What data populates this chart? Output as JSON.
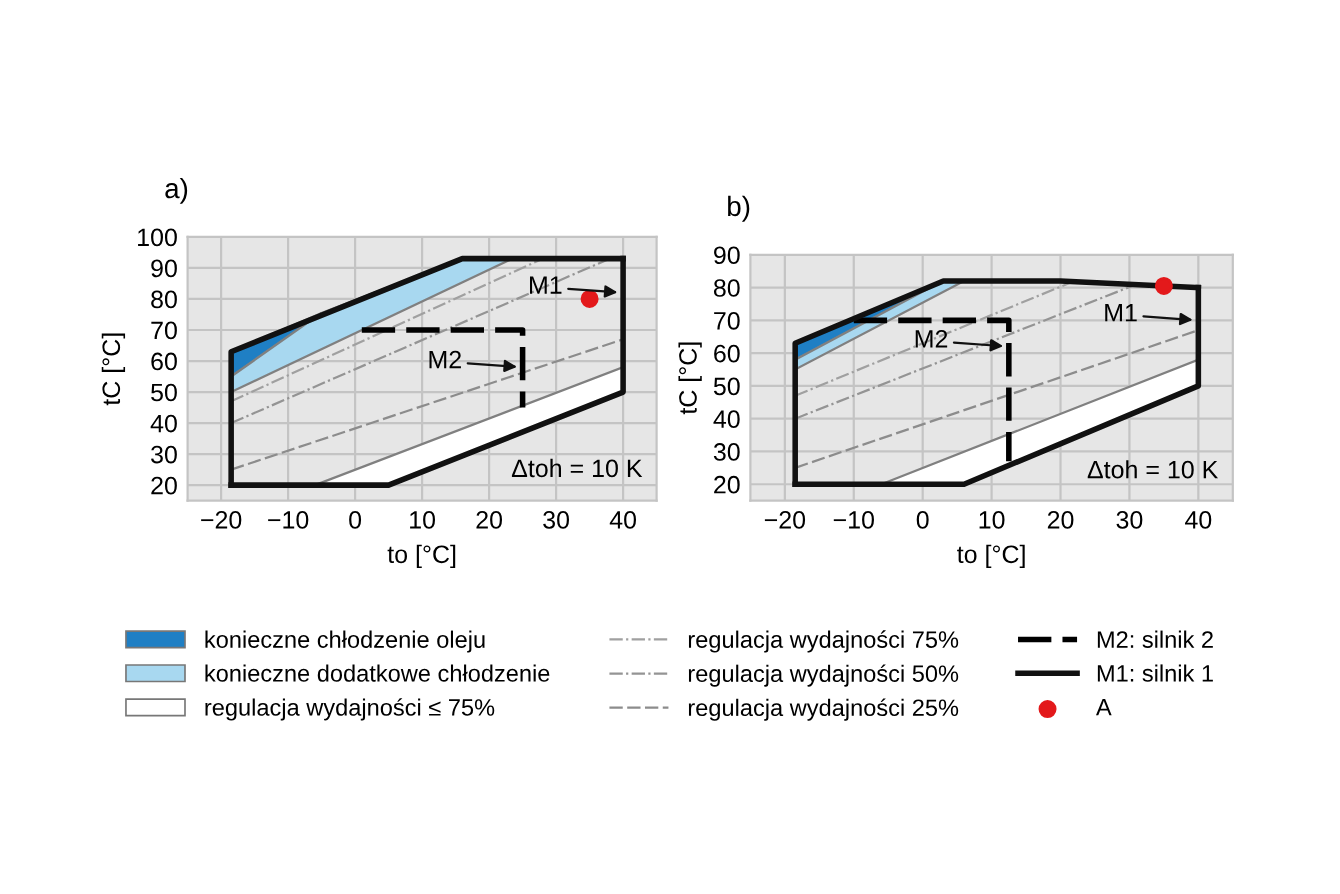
{
  "chart_data": [
    {
      "type": "line",
      "title": "a)",
      "xlabel": "to [°C]",
      "ylabel": "tC [°C]",
      "xlim": [
        -25,
        45
      ],
      "ylim": [
        15,
        100
      ],
      "xticks": [
        -20,
        -10,
        0,
        10,
        20,
        30,
        40
      ],
      "yticks": [
        20,
        30,
        40,
        50,
        60,
        70,
        80,
        90,
        100
      ],
      "grid": true,
      "legend": "bottom",
      "annotations": [
        {
          "text": "M1",
          "x": 40,
          "y": 82
        },
        {
          "text": "M2",
          "x": 25,
          "y": 58
        },
        "Δtoh = 10 K"
      ],
      "series": [
        {
          "type": "area",
          "name": "konieczne chłodzenie oleju",
          "color": "#1f7fc4",
          "x": [
            -18.5,
            -5,
            -18.5
          ],
          "values": [
            63,
            75.5,
            55
          ]
        },
        {
          "type": "area",
          "name": "konieczne dodatkowe chłodzenie",
          "color": "#a8d8f0",
          "x": [
            -18.5,
            -5,
            16,
            23.5,
            -18.5
          ],
          "values": [
            55,
            75.5,
            93,
            93,
            50
          ]
        },
        {
          "type": "area",
          "name": "regulacja wydajności ≤ 75%",
          "color": "#ffffff",
          "x": [
            -6,
            5,
            40,
            40
          ],
          "values": [
            20,
            20,
            50,
            58
          ]
        },
        {
          "type": "line",
          "name": "regulacja wydajności 75%",
          "color": "#a0a0a0",
          "line_style": "dotted",
          "x": [
            -18.5,
            28
          ],
          "values": [
            47,
            93
          ]
        },
        {
          "type": "line",
          "name": "regulacja wydajności 50%",
          "color": "#949494",
          "line_style": "dotted",
          "x": [
            -18.5,
            38
          ],
          "values": [
            40,
            93
          ]
        },
        {
          "type": "line",
          "name": "regulacja wydajności 25%",
          "color": "#8c8c8c",
          "line_style": "dashed",
          "x": [
            -18.5,
            40
          ],
          "values": [
            25,
            67
          ]
        },
        {
          "type": "line",
          "name": "M2: silnik 2",
          "color": "#000000",
          "line_style": "dashed",
          "x": [
            1,
            25,
            25
          ],
          "values": [
            70,
            70,
            45
          ]
        },
        {
          "type": "line",
          "name": "M1: silnik 1",
          "color": "#111111",
          "line_style": "solid",
          "x": [
            -18.5,
            5,
            40,
            40
          ],
          "values": [
            20,
            20,
            50,
            93
          ]
        },
        {
          "type": "scatter",
          "name": "A",
          "color": "#e3191b",
          "x": [
            35
          ],
          "values": [
            80
          ]
        },
        {
          "type": "line",
          "color": "#111111",
          "line_style": "solid",
          "x": [
            -18.5,
            -18.5,
            16,
            40
          ],
          "values": [
            20,
            63,
            93,
            93
          ]
        }
      ]
    },
    {
      "type": "line",
      "title": "b)",
      "xlabel": "to [°C]",
      "ylabel": "tC [°C]",
      "xlim": [
        -25,
        45
      ],
      "ylim": [
        15,
        90
      ],
      "xticks": [
        -20,
        -10,
        0,
        10,
        20,
        30,
        40
      ],
      "yticks": [
        20,
        30,
        40,
        50,
        60,
        70,
        80,
        90
      ],
      "grid": true,
      "annotations": [
        {
          "text": "M1",
          "x": 40,
          "y": 70
        },
        {
          "text": "M2",
          "x": 12.5,
          "y": 62
        },
        "Δtoh = 10 K"
      ],
      "series": [
        {
          "type": "area",
          "color": "#1f7fc4",
          "x": [
            -18.5,
            2,
            -18.5
          ],
          "values": [
            63,
            81,
            58
          ]
        },
        {
          "type": "area",
          "color": "#a8d8f0",
          "x": [
            -18.5,
            2,
            3,
            6,
            -18.5
          ],
          "values": [
            58,
            81,
            82,
            82,
            55
          ]
        },
        {
          "type": "area",
          "color": "#ffffff",
          "x": [
            -6,
            6,
            40,
            40
          ],
          "values": [
            20,
            20,
            50,
            58
          ]
        },
        {
          "type": "line",
          "color": "#a0a0a0",
          "line_style": "dotted",
          "x": [
            -18.5,
            22
          ],
          "values": [
            47,
            82
          ]
        },
        {
          "type": "line",
          "color": "#949494",
          "line_style": "dotted",
          "x": [
            -18.5,
            31
          ],
          "values": [
            40,
            81
          ]
        },
        {
          "type": "line",
          "color": "#8c8c8c",
          "line_style": "dashed",
          "x": [
            -18.5,
            40
          ],
          "values": [
            25,
            67
          ]
        },
        {
          "type": "line",
          "color": "#000000",
          "line_style": "dashed",
          "x": [
            -10,
            12.5,
            12.5
          ],
          "values": [
            70,
            70,
            27
          ]
        },
        {
          "type": "line",
          "color": "#111111",
          "line_style": "solid",
          "x": [
            -18.5,
            6,
            40,
            40
          ],
          "values": [
            20,
            20,
            50,
            80
          ]
        },
        {
          "type": "scatter",
          "color": "#e3191b",
          "x": [
            35
          ],
          "values": [
            80.5
          ]
        },
        {
          "type": "line",
          "color": "#111111",
          "line_style": "solid",
          "x": [
            -18.5,
            -18.5,
            3,
            20,
            40
          ],
          "values": [
            20,
            63,
            82,
            82,
            80
          ]
        }
      ]
    }
  ]
}
